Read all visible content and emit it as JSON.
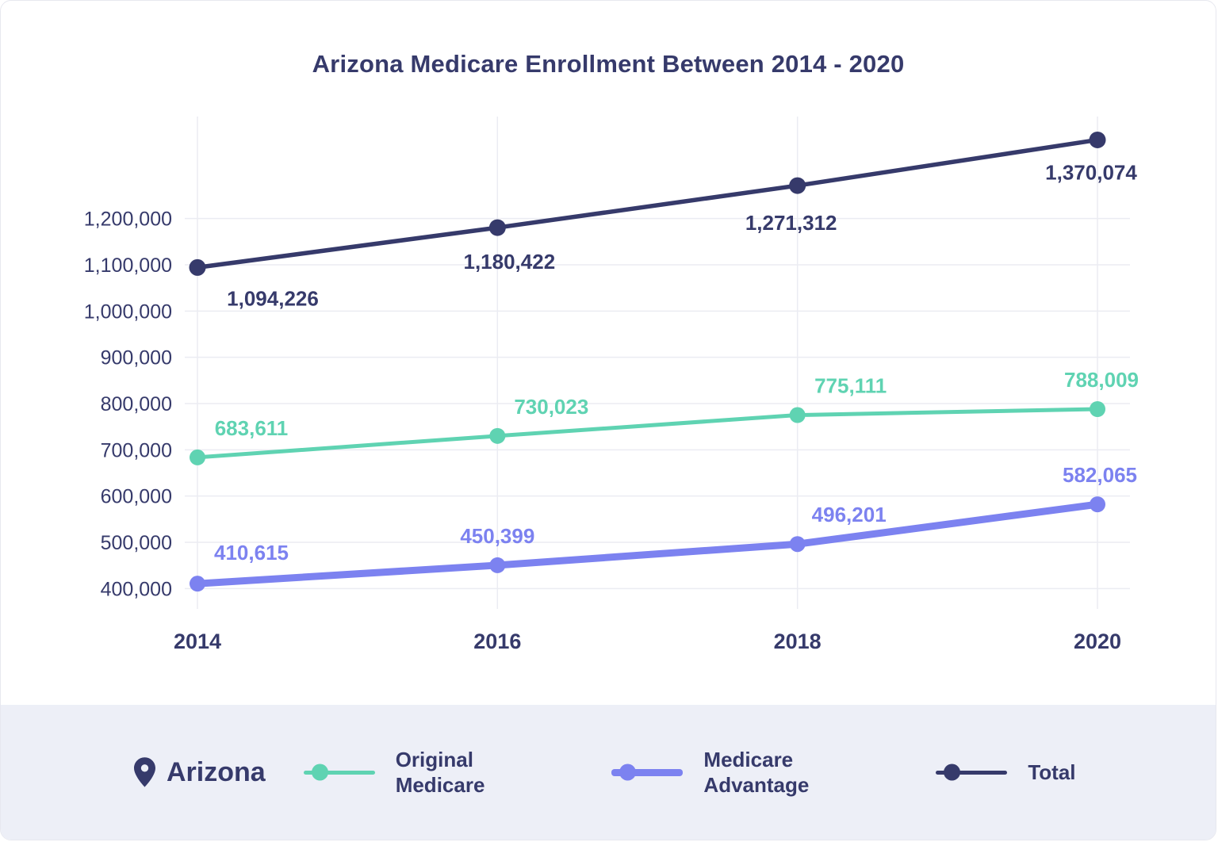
{
  "title": "Arizona Medicare Enrollment Between 2014 - 2020",
  "colors": {
    "navy": "#363a6b",
    "teal": "#5fd3b2",
    "purple": "#7c82f0",
    "grid": "#ebecf2",
    "legend_bg": "#edeff7"
  },
  "chart_data": {
    "type": "line",
    "title": "Arizona Medicare Enrollment Between 2014 - 2020",
    "categories": [
      "2014",
      "2016",
      "2018",
      "2020"
    ],
    "series": [
      {
        "name": "Original Medicare",
        "color_key": "teal",
        "values": [
          683611,
          730023,
          775111,
          788009
        ],
        "labels": [
          "683,611",
          "730,023",
          "775,111",
          "788,009"
        ]
      },
      {
        "name": "Medicare Advantage",
        "color_key": "purple",
        "values": [
          410615,
          450399,
          496201,
          582065
        ],
        "labels": [
          "410,615",
          "450,399",
          "496,201",
          "582,065"
        ]
      },
      {
        "name": "Total",
        "color_key": "navy",
        "values": [
          1094226,
          1180422,
          1271312,
          1370074
        ],
        "labels": [
          "1,094,226",
          "1,180,422",
          "1,271,312",
          "1,370,074"
        ]
      }
    ],
    "y_ticks": [
      400000,
      500000,
      600000,
      700000,
      800000,
      900000,
      1000000,
      1100000,
      1200000
    ],
    "y_tick_labels": [
      "400,000",
      "500,000",
      "600,000",
      "700,000",
      "800,000",
      "900,000",
      "1,000,000",
      "1,100,000",
      "1,200,000"
    ],
    "ylim": [
      380000,
      1400000
    ],
    "xlabel": "",
    "ylabel": "",
    "grid": true,
    "legend_position": "bottom"
  },
  "legend": {
    "region_label": "Arizona",
    "items": [
      {
        "line1": "Original",
        "line2": "Medicare"
      },
      {
        "line1": "Medicare",
        "line2": "Advantage"
      },
      {
        "line1": "Total",
        "line2": ""
      }
    ]
  }
}
